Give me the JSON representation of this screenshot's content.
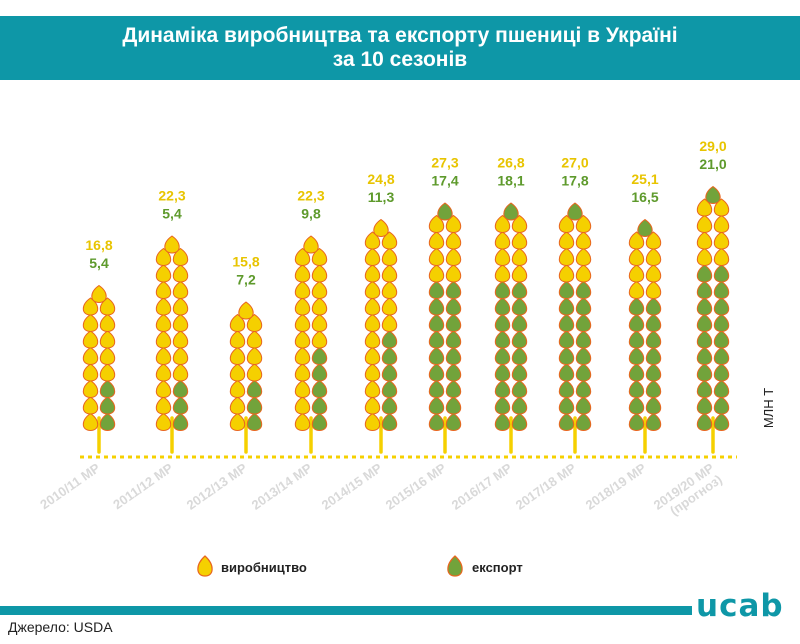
{
  "header": {
    "title": "Динаміка виробництва та експорту пшениці в Україні за 10 сезонів"
  },
  "source": "Джерело: USDA",
  "logo": "ucab",
  "colors": {
    "production": "#f5d000",
    "export": "#72a33b",
    "accent": "#0e97a7",
    "outline": "#e8661f"
  },
  "chart_data": {
    "type": "bar",
    "categories": [
      "2010/11 МР",
      "2011/12 МР",
      "2012/13 МР",
      "2013/14 МР",
      "2014/15 МР",
      "2015/16 МР",
      "2016/17 МР",
      "2017/18 МР",
      "2018/19 МР",
      "2019/20 МР (прогноз)"
    ],
    "series": [
      {
        "name": "виробництво",
        "values": [
          "16,8",
          "22,3",
          "15,8",
          "22,3",
          "24,8",
          "27,3",
          "26,8",
          "27,0",
          "25,1",
          "29,0"
        ]
      },
      {
        "name": "експорт",
        "values": [
          "5,4",
          "5,4",
          "7,2",
          "9,8",
          "11,3",
          "17,4",
          "18,1",
          "17,8",
          "16,5",
          "21,0"
        ]
      }
    ],
    "unit": "млн т",
    "legend": [
      "виробництво",
      "експорт"
    ],
    "legend_position": "bottom",
    "grid": false
  }
}
